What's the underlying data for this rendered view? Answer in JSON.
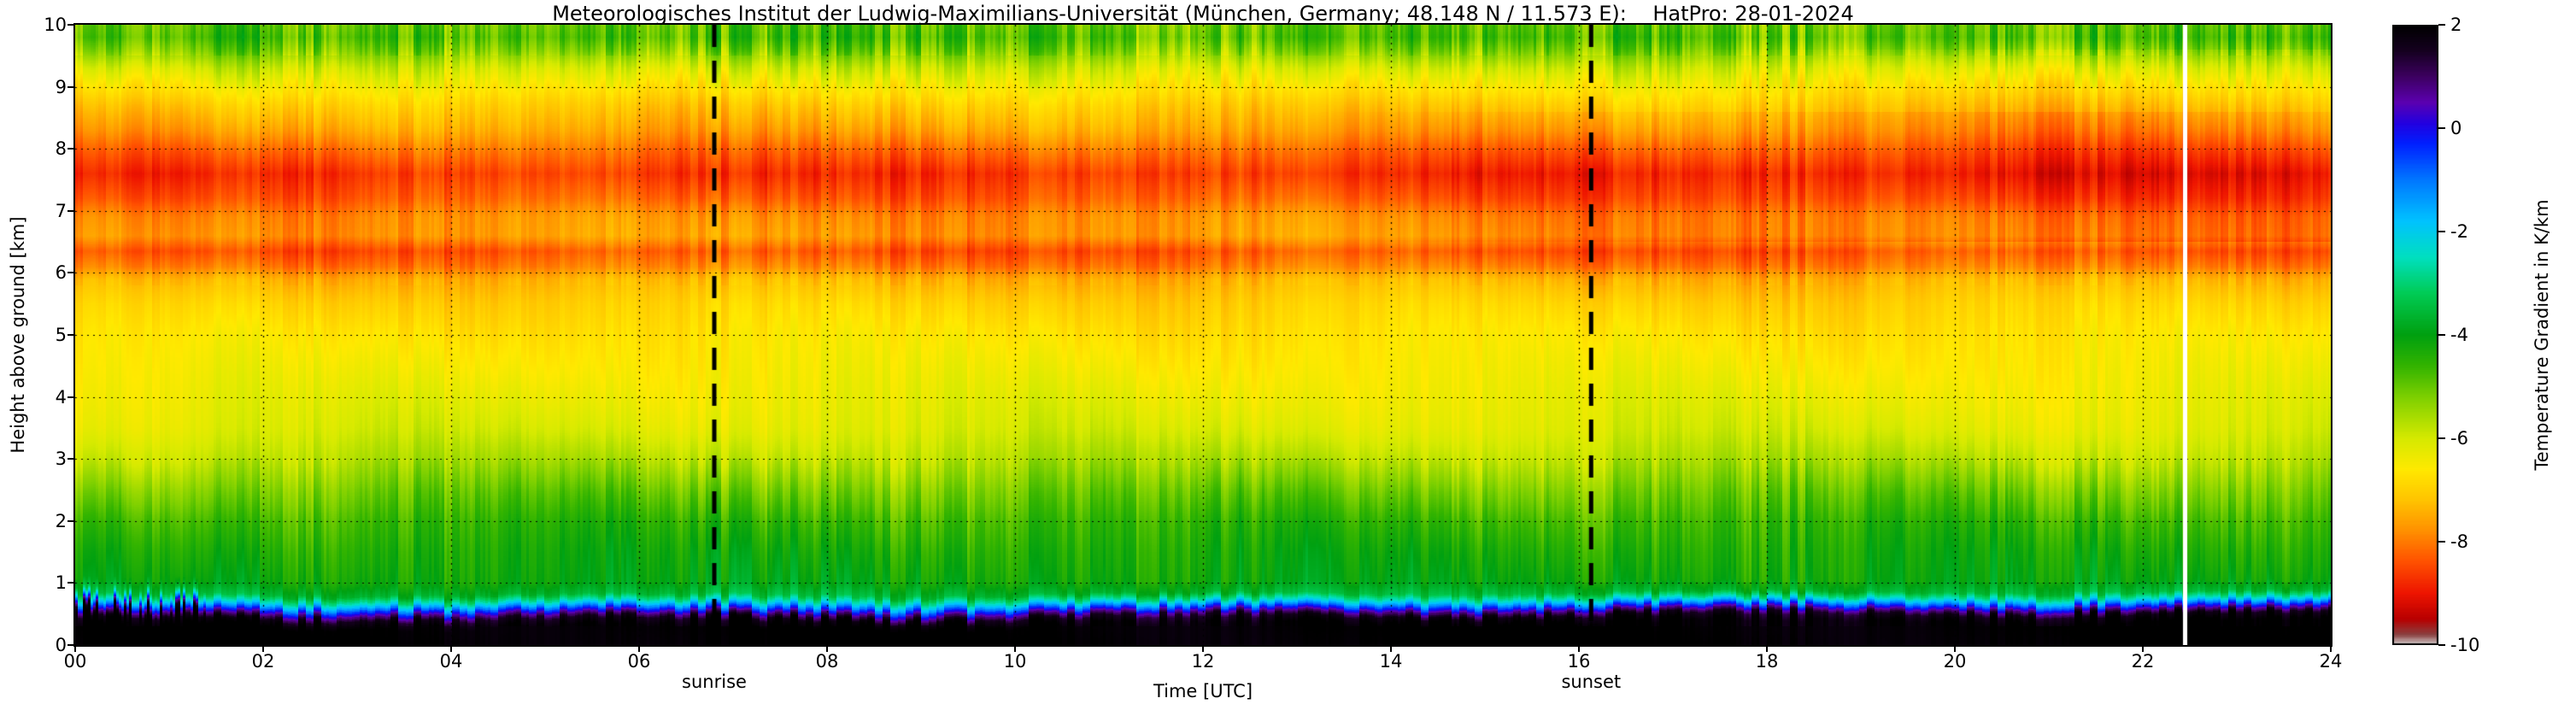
{
  "chart_data": {
    "type": "heatmap",
    "title": "Meteorologisches Institut der Ludwig-Maximilians-Universität (München, Germany; 48.148 N / 11.573 E):    HatPro: 28-01-2024",
    "xlabel": "Time [UTC]",
    "ylabel": "Height above ground [km]",
    "x_range_hours_utc": [
      0,
      24
    ],
    "x_tick_values": [
      0,
      2,
      4,
      6,
      8,
      10,
      12,
      14,
      16,
      18,
      20,
      22,
      24
    ],
    "x_tick_labels": [
      "00",
      "02",
      "04",
      "06",
      "08",
      "10",
      "12",
      "14",
      "16",
      "18",
      "20",
      "22",
      "24"
    ],
    "y_range_km": [
      0,
      10
    ],
    "y_tick_values": [
      0,
      1,
      2,
      3,
      4,
      5,
      6,
      7,
      8,
      9,
      10
    ],
    "y_tick_labels": [
      "0",
      "1",
      "2",
      "3",
      "4",
      "5",
      "6",
      "7",
      "8",
      "9",
      "10"
    ],
    "grid": "dotted",
    "colorbar": {
      "label": "Temperature Gradient in K/km",
      "range": [
        -10,
        2
      ],
      "tick_values": [
        2,
        0,
        -2,
        -4,
        -6,
        -8,
        -10
      ],
      "tick_labels": [
        "2",
        "0",
        "-2",
        "-4",
        "-6",
        "-8",
        "-10"
      ]
    },
    "annotations": [
      {
        "label": "sunrise",
        "time_utc": 6.8
      },
      {
        "label": "sunset",
        "time_utc": 16.13
      }
    ],
    "missing_data_line_time_utc": 22.45,
    "colormap_stops": [
      [
        2.0,
        "#000000"
      ],
      [
        1.5,
        "#15001f"
      ],
      [
        1.0,
        "#3d0060"
      ],
      [
        0.5,
        "#5c00b0"
      ],
      [
        0.1,
        "#2400e0"
      ],
      [
        -0.3,
        "#0020ff"
      ],
      [
        -1.0,
        "#0077ff"
      ],
      [
        -1.8,
        "#00c3ff"
      ],
      [
        -2.5,
        "#00e0c0"
      ],
      [
        -3.2,
        "#00cc55"
      ],
      [
        -4.0,
        "#00a010"
      ],
      [
        -4.6,
        "#33b400"
      ],
      [
        -5.2,
        "#7ed000"
      ],
      [
        -6.0,
        "#d6ea00"
      ],
      [
        -6.6,
        "#ffe900"
      ],
      [
        -7.2,
        "#ffc400"
      ],
      [
        -7.8,
        "#ff9000"
      ],
      [
        -8.4,
        "#ff5000"
      ],
      [
        -9.0,
        "#ee1500"
      ],
      [
        -9.5,
        "#b80000"
      ],
      [
        -9.8,
        "#8a4040"
      ],
      [
        -10.0,
        "#d8d8d8"
      ]
    ],
    "mean_profile": {
      "height_km": [
        0.0,
        0.3,
        0.42,
        0.5,
        0.56,
        0.62,
        0.7,
        0.8,
        1.0,
        1.5,
        2.0,
        2.5,
        3.0,
        3.5,
        4.0,
        4.5,
        5.0,
        5.5,
        5.9,
        6.1,
        6.35,
        6.6,
        6.9,
        7.2,
        7.6,
        7.95,
        8.3,
        8.7,
        9.0,
        9.3,
        9.6,
        9.8,
        10.0
      ],
      "gradient_K_per_km": [
        2.0,
        2.0,
        1.6,
        0.6,
        -0.4,
        -1.4,
        -2.6,
        -3.6,
        -4.1,
        -4.3,
        -4.6,
        -5.1,
        -5.7,
        -6.1,
        -6.3,
        -6.5,
        -6.7,
        -7.0,
        -7.4,
        -8.0,
        -8.4,
        -7.7,
        -7.8,
        -8.3,
        -8.7,
        -8.2,
        -7.6,
        -7.1,
        -6.6,
        -6.0,
        -5.2,
        -4.8,
        -5.0
      ]
    }
  }
}
